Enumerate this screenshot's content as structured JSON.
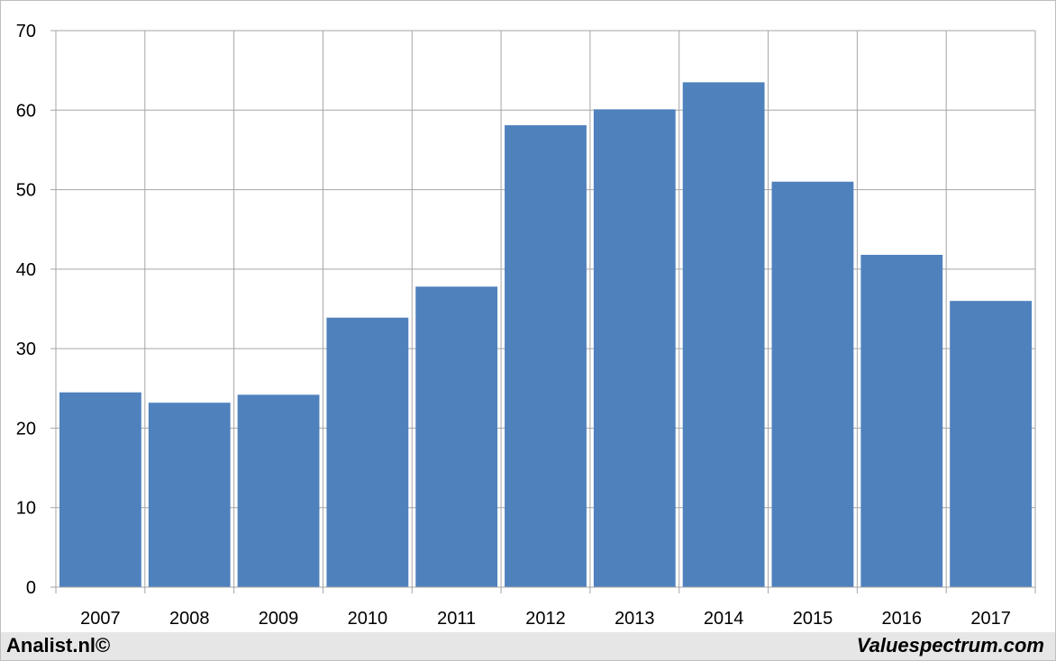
{
  "chart_data": {
    "type": "bar",
    "categories": [
      "2007",
      "2008",
      "2009",
      "2010",
      "2011",
      "2012",
      "2013",
      "2014",
      "2015",
      "2016",
      "2017"
    ],
    "values": [
      24.5,
      23.2,
      24.2,
      33.9,
      37.8,
      58.1,
      60.1,
      63.5,
      51.0,
      41.8,
      36.0
    ],
    "ylim": [
      0,
      70
    ],
    "yticks": [
      0,
      10,
      20,
      30,
      40,
      50,
      60,
      70
    ],
    "grid": true,
    "bar_color": "#4f81bd",
    "grid_color": "#a6a6a6"
  },
  "footer": {
    "left_text": "Analist.nl©",
    "right_text": "Valuespectrum.com"
  }
}
